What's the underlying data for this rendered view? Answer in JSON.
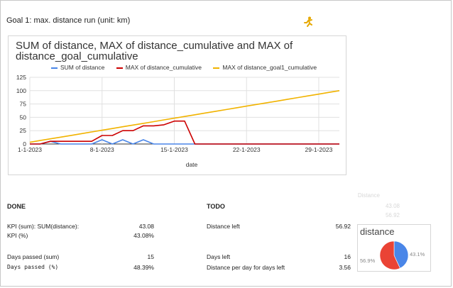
{
  "goal_title": "Goal 1: max. distance run (unit: km)",
  "icon": "runner-icon",
  "chart_data": {
    "type": "line",
    "title": "SUM of distance, MAX of distance_cumulative and MAX of distance_goal_cumulative",
    "title_lines": [
      "SUM of distance, MAX of distance_cumulative and MAX of",
      "distance_goal_cumulative"
    ],
    "xlabel": "date",
    "ylabel": "",
    "x": [
      "1-1-2023",
      "2-1-2023",
      "3-1-2023",
      "4-1-2023",
      "5-1-2023",
      "6-1-2023",
      "7-1-2023",
      "8-1-2023",
      "9-1-2023",
      "10-1-2023",
      "11-1-2023",
      "12-1-2023",
      "13-1-2023",
      "14-1-2023",
      "15-1-2023",
      "16-1-2023",
      "17-1-2023",
      "18-1-2023",
      "19-1-2023",
      "20-1-2023",
      "21-1-2023",
      "22-1-2023",
      "23-1-2023",
      "24-1-2023",
      "25-1-2023",
      "26-1-2023",
      "27-1-2023",
      "28-1-2023",
      "29-1-2023",
      "30-1-2023",
      "31-1-2023"
    ],
    "x_ticks": [
      "1-1-2023",
      "8-1-2023",
      "15-1-2023",
      "22-1-2023",
      "29-1-2023"
    ],
    "y_ticks": [
      0,
      25,
      50,
      75,
      100,
      125
    ],
    "ylim": [
      0,
      125
    ],
    "grid": true,
    "legend_position": "top",
    "series": [
      {
        "name": "SUM of distance",
        "color": "#4a86e8",
        "values": [
          0,
          0,
          5,
          0,
          0,
          0,
          0,
          8,
          0,
          8,
          0,
          8,
          0,
          0,
          0,
          0,
          0,
          0,
          0,
          0,
          0,
          0,
          0,
          0,
          0,
          0,
          0,
          0,
          0,
          0,
          0
        ]
      },
      {
        "name": "MAX of distance_cumulative",
        "color": "#cc0000",
        "values": [
          0,
          0,
          5,
          5,
          5,
          5,
          5,
          16,
          16,
          25,
          25,
          34,
          34,
          36,
          43,
          43,
          0,
          0,
          0,
          0,
          0,
          0,
          0,
          0,
          0,
          0,
          0,
          0,
          0,
          0,
          0
        ]
      },
      {
        "name": "MAX of distance_goal1_cumulative",
        "color": "#f1b300",
        "values": [
          3.2,
          6.5,
          9.7,
          12.9,
          16.1,
          19.4,
          22.6,
          25.8,
          29.0,
          32.3,
          35.5,
          38.7,
          41.9,
          45.2,
          48.4,
          51.6,
          54.8,
          58.1,
          61.3,
          64.5,
          67.7,
          71.0,
          74.2,
          77.4,
          80.6,
          83.9,
          87.1,
          90.3,
          93.5,
          96.8,
          100
        ]
      }
    ]
  },
  "done": {
    "heading": "DONE",
    "rows": [
      {
        "label": "KPI (sum): SUM(distance):",
        "value": "43.08"
      },
      {
        "label": "KPI (%)",
        "value": "43.08%"
      },
      {
        "label": "Days passed (sum)",
        "value": "15"
      },
      {
        "label": "Days passed (%)",
        "value": "48.39%"
      }
    ]
  },
  "todo": {
    "heading": "TODO",
    "rows": [
      {
        "label": "Distance left",
        "value": "56.92"
      },
      {
        "label": "Days left",
        "value": "16"
      },
      {
        "label": "Distance per day for days left",
        "value": "3.56"
      }
    ]
  },
  "ghost": {
    "header": "Distance",
    "v1": "43.08",
    "v2": "56.92"
  },
  "pie": {
    "title": "distance",
    "slices": [
      {
        "label": "43.1%",
        "value": 43.08,
        "color": "#4a86e8"
      },
      {
        "label": "56.9%",
        "value": 56.92,
        "color": "#ea4335"
      }
    ]
  }
}
